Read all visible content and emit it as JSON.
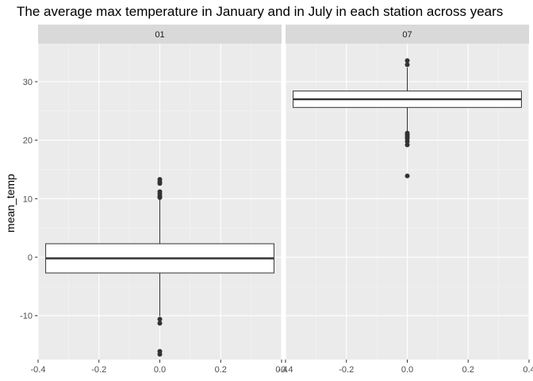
{
  "chart_data": {
    "type": "boxplot",
    "title": "The average max temperature in January and in July in each station across years",
    "xlabel": "",
    "ylabel": "mean_temp",
    "xlim": [
      -0.4,
      0.4
    ],
    "ylim": [
      -17.5,
      36.5
    ],
    "x_ticks": [
      -0.4,
      -0.2,
      0.0,
      0.2,
      0.4
    ],
    "x_tick_labels": [
      "-0.4",
      "-0.2",
      "0.0",
      "0.2",
      "0.4"
    ],
    "y_ticks": [
      -10,
      0,
      10,
      20,
      30
    ],
    "y_tick_labels": [
      "-10",
      "0",
      "10",
      "20",
      "30"
    ],
    "grid": true,
    "facets": [
      {
        "label": "01",
        "box": {
          "x": 0.0,
          "width": 0.75,
          "q1": -2.7,
          "median": -0.2,
          "q3": 2.3,
          "whisker_low": -10.1,
          "whisker_high": 10.0
        },
        "outliers": [
          13.3,
          12.9,
          12.6,
          11.2,
          10.8,
          10.4,
          10.2,
          -10.6,
          -11.3,
          -16.1,
          -16.6
        ]
      },
      {
        "label": "07",
        "box": {
          "x": 0.0,
          "width": 0.75,
          "q1": 25.6,
          "median": 27.0,
          "q3": 28.4,
          "whisker_low": 21.4,
          "whisker_high": 32.4
        },
        "outliers": [
          33.6,
          32.9,
          21.2,
          20.9,
          20.6,
          20.3,
          19.8,
          19.2,
          13.9
        ]
      }
    ]
  },
  "colors": {
    "panel_bg": "#ebebeb",
    "strip_bg": "#d9d9d9",
    "grid_major": "#ffffff",
    "grid_minor": "#f5f5f5",
    "box_fill": "#ffffff",
    "box_line": "#333333",
    "outlier": "#333333",
    "tick": "#333333"
  }
}
